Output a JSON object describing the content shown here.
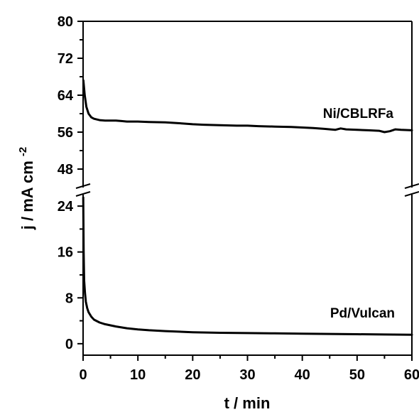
{
  "chart_data": {
    "type": "line",
    "xlabel": "t / min",
    "ylabel_main": "j / mA cm",
    "ylabel_sup": "-2",
    "xlim": [
      0,
      60
    ],
    "x_ticks": [
      "0",
      "10",
      "20",
      "30",
      "40",
      "50",
      "60"
    ],
    "y_axis_broken": true,
    "upper_segment": {
      "ylim": [
        44,
        80
      ],
      "ticks": [
        "48",
        "56",
        "64",
        "72",
        "80"
      ]
    },
    "lower_segment": {
      "ylim": [
        -2,
        26
      ],
      "ticks": [
        "0",
        "8",
        "16",
        "24"
      ]
    },
    "series": [
      {
        "name": "Ni/CBLRFa",
        "segment": "upper",
        "x": [
          0.05,
          0.3,
          0.6,
          1,
          1.5,
          2,
          3,
          4,
          5,
          6,
          7,
          8,
          10,
          12,
          15,
          18,
          20,
          22,
          25,
          28,
          30,
          32,
          35,
          38,
          40,
          42,
          44,
          46,
          47,
          48,
          50,
          52,
          54,
          55,
          56,
          57,
          58,
          60
        ],
        "y": [
          67.2,
          64,
          61.5,
          60,
          59.2,
          58.9,
          58.6,
          58.5,
          58.5,
          58.5,
          58.4,
          58.3,
          58.3,
          58.2,
          58.1,
          57.9,
          57.7,
          57.6,
          57.5,
          57.4,
          57.4,
          57.3,
          57.2,
          57.1,
          57,
          56.9,
          56.7,
          56.5,
          56.8,
          56.6,
          56.5,
          56.4,
          56.3,
          56,
          56.2,
          56.6,
          56.5,
          56.4
        ]
      },
      {
        "name": "Pd/Vulcan",
        "segment": "lower",
        "x": [
          0.02,
          0.1,
          0.2,
          0.35,
          0.5,
          0.75,
          1,
          1.5,
          2,
          3,
          4,
          5,
          6,
          8,
          10,
          12,
          15,
          20,
          25,
          30,
          35,
          40,
          45,
          50,
          55,
          60
        ],
        "y": [
          25.5,
          16,
          11,
          8.8,
          7.3,
          6.2,
          5.5,
          4.7,
          4.2,
          3.7,
          3.4,
          3.2,
          3,
          2.7,
          2.5,
          2.35,
          2.2,
          2,
          1.9,
          1.85,
          1.8,
          1.75,
          1.7,
          1.65,
          1.6,
          1.55
        ]
      }
    ]
  }
}
